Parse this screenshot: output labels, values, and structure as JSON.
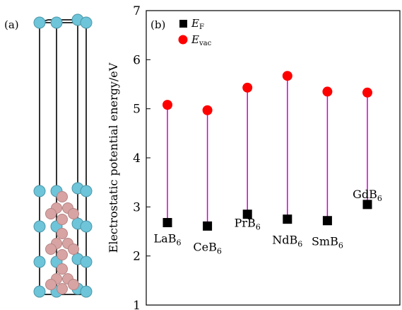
{
  "panel_a": {
    "label": "(a)"
  },
  "chart_data": {
    "type": "scatter",
    "panel_label": "(b)",
    "ylabel": "Electrostatic potential energy/eV",
    "xlabel": "",
    "ylim": [
      1,
      7
    ],
    "yticks": [
      1,
      2,
      3,
      4,
      5,
      6,
      7
    ],
    "grid": false,
    "legend": "top-left",
    "categories": [
      {
        "base": "LaB",
        "sub": "6"
      },
      {
        "base": "CeB",
        "sub": "6"
      },
      {
        "base": "PrB",
        "sub": "6"
      },
      {
        "base": "NdB",
        "sub": "6"
      },
      {
        "base": "SmB",
        "sub": "6"
      },
      {
        "base": "GdB",
        "sub": "6"
      }
    ],
    "series": [
      {
        "name_base": "E",
        "name_sub": "F",
        "marker": "square",
        "color": "#000000",
        "values": [
          2.68,
          2.61,
          2.85,
          2.75,
          2.72,
          3.05
        ]
      },
      {
        "name_base": "E",
        "name_sub": "vac",
        "marker": "circle",
        "color": "#ff0000",
        "values": [
          5.08,
          4.97,
          5.43,
          5.67,
          5.35,
          5.33
        ]
      }
    ],
    "connector_color": "#cc00cc"
  }
}
